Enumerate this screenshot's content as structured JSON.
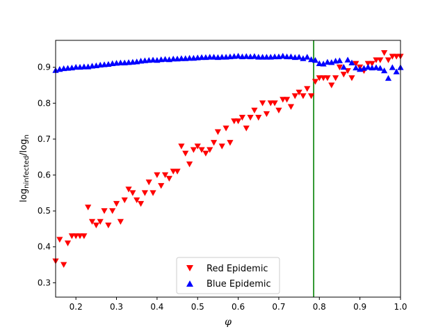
{
  "chart_data": {
    "type": "scatter",
    "title": "",
    "xlabel": "φ",
    "ylabel": "log n_infected / log n",
    "ylabel_parts": {
      "a": "log",
      "b": "n",
      "c": "infected",
      "d": "/log",
      "e": "n"
    },
    "xlim": [
      0.15,
      1.0
    ],
    "ylim": [
      0.26,
      0.975
    ],
    "xticks": [
      0.2,
      0.3,
      0.4,
      0.5,
      0.6,
      0.7,
      0.8,
      0.9,
      1.0
    ],
    "xtick_labels": [
      "0.2",
      "0.3",
      "0.4",
      "0.5",
      "0.6",
      "0.7",
      "0.8",
      "0.9",
      "1.0"
    ],
    "yticks": [
      0.3,
      0.4,
      0.5,
      0.6,
      0.7,
      0.8,
      0.9
    ],
    "ytick_labels": [
      "0.3",
      "0.4",
      "0.5",
      "0.6",
      "0.7",
      "0.8",
      "0.9"
    ],
    "vline": {
      "x": 0.786,
      "color": "#008000"
    },
    "legend_position": "lower center",
    "series": [
      {
        "name": "Red Epidemic",
        "color": "#ff0000",
        "marker": "triangle-down",
        "x": [
          0.15,
          0.16,
          0.17,
          0.18,
          0.19,
          0.2,
          0.21,
          0.22,
          0.23,
          0.24,
          0.25,
          0.26,
          0.27,
          0.28,
          0.29,
          0.3,
          0.31,
          0.32,
          0.33,
          0.34,
          0.35,
          0.36,
          0.37,
          0.38,
          0.39,
          0.4,
          0.41,
          0.42,
          0.43,
          0.44,
          0.45,
          0.46,
          0.47,
          0.48,
          0.49,
          0.5,
          0.51,
          0.52,
          0.53,
          0.54,
          0.55,
          0.56,
          0.57,
          0.58,
          0.59,
          0.6,
          0.61,
          0.62,
          0.63,
          0.64,
          0.65,
          0.66,
          0.67,
          0.68,
          0.69,
          0.7,
          0.71,
          0.72,
          0.73,
          0.74,
          0.75,
          0.76,
          0.77,
          0.78,
          0.79,
          0.8,
          0.81,
          0.82,
          0.83,
          0.84,
          0.85,
          0.86,
          0.87,
          0.88,
          0.89,
          0.9,
          0.91,
          0.92,
          0.93,
          0.94,
          0.95,
          0.96,
          0.97,
          0.98,
          0.99,
          1.0
        ],
        "y": [
          0.36,
          0.42,
          0.35,
          0.41,
          0.43,
          0.43,
          0.43,
          0.43,
          0.51,
          0.47,
          0.46,
          0.47,
          0.5,
          0.46,
          0.5,
          0.52,
          0.47,
          0.53,
          0.56,
          0.55,
          0.53,
          0.52,
          0.55,
          0.58,
          0.55,
          0.6,
          0.57,
          0.6,
          0.59,
          0.61,
          0.61,
          0.68,
          0.66,
          0.63,
          0.67,
          0.68,
          0.67,
          0.66,
          0.67,
          0.69,
          0.72,
          0.68,
          0.73,
          0.69,
          0.75,
          0.75,
          0.76,
          0.73,
          0.76,
          0.78,
          0.76,
          0.8,
          0.77,
          0.8,
          0.8,
          0.78,
          0.81,
          0.81,
          0.79,
          0.82,
          0.83,
          0.82,
          0.84,
          0.82,
          0.86,
          0.87,
          0.87,
          0.87,
          0.85,
          0.87,
          0.9,
          0.88,
          0.89,
          0.87,
          0.91,
          0.9,
          0.89,
          0.91,
          0.91,
          0.92,
          0.92,
          0.94,
          0.92,
          0.93,
          0.93,
          0.93
        ]
      },
      {
        "name": "Blue Epidemic",
        "color": "#0000ff",
        "marker": "triangle-up",
        "x": [
          0.15,
          0.16,
          0.17,
          0.18,
          0.19,
          0.2,
          0.21,
          0.22,
          0.23,
          0.24,
          0.25,
          0.26,
          0.27,
          0.28,
          0.29,
          0.3,
          0.31,
          0.32,
          0.33,
          0.34,
          0.35,
          0.36,
          0.37,
          0.38,
          0.39,
          0.4,
          0.41,
          0.42,
          0.43,
          0.44,
          0.45,
          0.46,
          0.47,
          0.48,
          0.49,
          0.5,
          0.51,
          0.52,
          0.53,
          0.54,
          0.55,
          0.56,
          0.57,
          0.58,
          0.59,
          0.6,
          0.61,
          0.62,
          0.63,
          0.64,
          0.65,
          0.66,
          0.67,
          0.68,
          0.69,
          0.7,
          0.71,
          0.72,
          0.73,
          0.74,
          0.75,
          0.76,
          0.77,
          0.78,
          0.79,
          0.8,
          0.81,
          0.82,
          0.83,
          0.84,
          0.85,
          0.86,
          0.87,
          0.88,
          0.89,
          0.9,
          0.91,
          0.92,
          0.93,
          0.94,
          0.95,
          0.96,
          0.97,
          0.98,
          0.99,
          1.0
        ],
        "y": [
          0.892,
          0.895,
          0.897,
          0.898,
          0.899,
          0.901,
          0.901,
          0.902,
          0.902,
          0.904,
          0.905,
          0.907,
          0.908,
          0.909,
          0.911,
          0.912,
          0.913,
          0.913,
          0.914,
          0.915,
          0.916,
          0.918,
          0.919,
          0.92,
          0.921,
          0.92,
          0.922,
          0.923,
          0.922,
          0.924,
          0.924,
          0.925,
          0.925,
          0.926,
          0.926,
          0.927,
          0.928,
          0.928,
          0.929,
          0.929,
          0.928,
          0.929,
          0.929,
          0.93,
          0.931,
          0.932,
          0.93,
          0.931,
          0.93,
          0.931,
          0.929,
          0.929,
          0.929,
          0.929,
          0.93,
          0.93,
          0.932,
          0.93,
          0.93,
          0.928,
          0.929,
          0.925,
          0.929,
          0.922,
          0.92,
          0.911,
          0.91,
          0.915,
          0.914,
          0.918,
          0.919,
          0.901,
          0.921,
          0.913,
          0.899,
          0.895,
          0.898,
          0.901,
          0.899,
          0.9,
          0.898,
          0.891,
          0.87,
          0.9,
          0.888,
          0.9
        ]
      }
    ]
  }
}
